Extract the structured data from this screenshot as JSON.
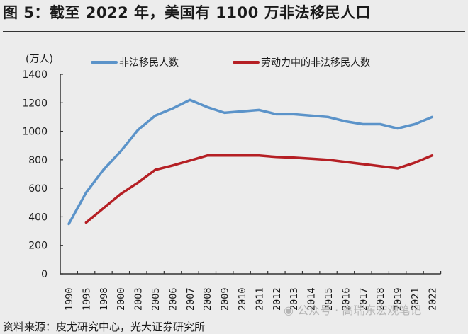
{
  "header": {
    "title": "图 5：截至 2022 年，美国有 1100 万非法移民人口"
  },
  "footer": {
    "source": "资料来源：皮尤研究中心，光大证券研究所",
    "watermark": "公众号 · 高瑞东宏观笔记"
  },
  "colors": {
    "series_1": "#5b93c9",
    "series_2": "#b51f24",
    "background": "#ececec",
    "axis": "#333333"
  },
  "chart_data": {
    "type": "line",
    "title": "截至 2022 年，美国有 1100 万非法移民人口",
    "xlabel": "",
    "ylabel": "(万人)",
    "ylim": [
      0,
      1400
    ],
    "yticks": [
      0,
      200,
      400,
      600,
      800,
      1000,
      1200,
      1400
    ],
    "grid": false,
    "legend_position": "top",
    "categories": [
      "1990",
      "1995",
      "1998",
      "2000",
      "2003",
      "2005",
      "2006",
      "2007",
      "2008",
      "2009",
      "2010",
      "2011",
      "2012",
      "2013",
      "2014",
      "2015",
      "2016",
      "2017",
      "2018",
      "2019",
      "2021",
      "2022"
    ],
    "series": [
      {
        "name": "非法移民人数",
        "color": "#5b93c9",
        "values": [
          350,
          570,
          730,
          860,
          1010,
          1110,
          1160,
          1220,
          1170,
          1130,
          1140,
          1150,
          1120,
          1120,
          1110,
          1100,
          1070,
          1050,
          1050,
          1020,
          1050,
          1100
        ]
      },
      {
        "name": "劳动力中的非法移民人数",
        "color": "#b51f24",
        "values": [
          null,
          360,
          460,
          560,
          640,
          730,
          760,
          795,
          830,
          830,
          830,
          830,
          820,
          815,
          808,
          800,
          785,
          770,
          755,
          740,
          780,
          830
        ]
      }
    ]
  }
}
